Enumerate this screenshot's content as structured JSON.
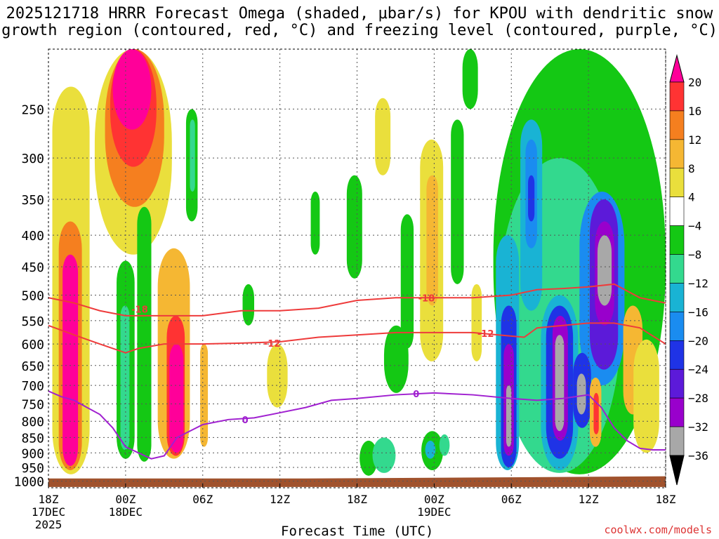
{
  "title_line1": "2025121718 HRRR Forecast Omega (shaded, μbar/s) for KPOU with dendritic snow",
  "title_line2": "growth region (contoured, red, °C) and freezing level (contoured, purple, °C)",
  "x_axis_title": "Forecast Time (UTC)",
  "credit": "coolwx.com/models",
  "chart_data": {
    "type": "heatmap",
    "title": "2025121718 HRRR Forecast Omega (shaded, μbar/s) for KPOU",
    "xlabel": "Forecast Time (UTC)",
    "ylabel": "",
    "x_range_hours": [
      0,
      48
    ],
    "y_range_hpa": [
      1025,
      200
    ],
    "y_ticks": [
      250,
      300,
      350,
      400,
      450,
      500,
      550,
      600,
      650,
      700,
      750,
      800,
      850,
      900,
      950,
      1000
    ],
    "x_ticks": [
      {
        "hour": 0,
        "label": "18Z",
        "sub": "17DEC",
        "sub2": "2025"
      },
      {
        "hour": 6,
        "label": "00Z",
        "sub": "18DEC",
        "sub2": ""
      },
      {
        "hour": 12,
        "label": "06Z",
        "sub": "",
        "sub2": ""
      },
      {
        "hour": 18,
        "label": "12Z",
        "sub": "",
        "sub2": ""
      },
      {
        "hour": 24,
        "label": "18Z",
        "sub": "",
        "sub2": ""
      },
      {
        "hour": 30,
        "label": "00Z",
        "sub": "19DEC",
        "sub2": ""
      },
      {
        "hour": 36,
        "label": "06Z",
        "sub": "",
        "sub2": ""
      },
      {
        "hour": 42,
        "label": "12Z",
        "sub": "",
        "sub2": ""
      },
      {
        "hour": 48,
        "label": "18Z",
        "sub": "",
        "sub2": ""
      }
    ],
    "colorbar": {
      "labels": [
        "20",
        "16",
        "12",
        "8",
        "4",
        "−4",
        "−8",
        "−12",
        "−16",
        "−20",
        "−24",
        "−28",
        "−32",
        "−36"
      ],
      "colors": [
        "#ff0099",
        "#ff3333",
        "#f57f1f",
        "#f5b733",
        "#eadf3c",
        "#ffffff",
        "#14c814",
        "#33d98e",
        "#19b3d4",
        "#1a8cf0",
        "#1f33e6",
        "#5c1ad9",
        "#9900cc",
        "#a8a8a8",
        "#000000"
      ]
    },
    "omega_cells": [
      {
        "t0": 0.3,
        "t1": 3.2,
        "p0": 230,
        "p1": 975,
        "level": 4
      },
      {
        "t0": 0.8,
        "t1": 2.6,
        "p0": 380,
        "p1": 960,
        "level": 2
      },
      {
        "t0": 1.1,
        "t1": 2.3,
        "p0": 430,
        "p1": 945,
        "level": 0
      },
      {
        "t0": 3.6,
        "t1": 9.6,
        "p0": 200,
        "p1": 430,
        "level": 4
      },
      {
        "t0": 4.4,
        "t1": 9.0,
        "p0": 200,
        "p1": 360,
        "level": 2
      },
      {
        "t0": 4.8,
        "t1": 8.4,
        "p0": 200,
        "p1": 310,
        "level": 1
      },
      {
        "t0": 5.0,
        "t1": 8.0,
        "p0": 200,
        "p1": 270,
        "level": 0
      },
      {
        "t0": 8.5,
        "t1": 11.0,
        "p0": 420,
        "p1": 920,
        "level": 3
      },
      {
        "t0": 9.2,
        "t1": 10.6,
        "p0": 540,
        "p1": 910,
        "level": 1
      },
      {
        "t0": 9.4,
        "t1": 10.5,
        "p0": 600,
        "p1": 900,
        "level": 0
      },
      {
        "t0": 5.3,
        "t1": 6.7,
        "p0": 440,
        "p1": 920,
        "level": 6
      },
      {
        "t0": 5.6,
        "t1": 6.3,
        "p0": 520,
        "p1": 890,
        "level": 7
      },
      {
        "t0": 6.9,
        "t1": 8.0,
        "p0": 360,
        "p1": 930,
        "level": 6
      },
      {
        "t0": 11.8,
        "t1": 12.4,
        "p0": 600,
        "p1": 880,
        "level": 3
      },
      {
        "t0": 10.7,
        "t1": 11.6,
        "p0": 250,
        "p1": 380,
        "level": 6
      },
      {
        "t0": 11.0,
        "t1": 11.4,
        "p0": 260,
        "p1": 340,
        "level": 7
      },
      {
        "t0": 15.1,
        "t1": 16.0,
        "p0": 480,
        "p1": 560,
        "level": 6
      },
      {
        "t0": 17.0,
        "t1": 18.6,
        "p0": 600,
        "p1": 760,
        "level": 4
      },
      {
        "t0": 20.4,
        "t1": 21.1,
        "p0": 340,
        "p1": 430,
        "level": 6
      },
      {
        "t0": 23.2,
        "t1": 24.4,
        "p0": 320,
        "p1": 470,
        "level": 6
      },
      {
        "t0": 24.2,
        "t1": 25.6,
        "p0": 860,
        "p1": 980,
        "level": 6
      },
      {
        "t0": 25.2,
        "t1": 27.0,
        "p0": 850,
        "p1": 970,
        "level": 7
      },
      {
        "t0": 25.4,
        "t1": 26.6,
        "p0": 240,
        "p1": 320,
        "level": 4
      },
      {
        "t0": 26.1,
        "t1": 28.0,
        "p0": 560,
        "p1": 720,
        "level": 6
      },
      {
        "t0": 27.4,
        "t1": 28.4,
        "p0": 370,
        "p1": 610,
        "level": 6
      },
      {
        "t0": 29.0,
        "t1": 30.7,
        "p0": 830,
        "p1": 960,
        "level": 6
      },
      {
        "t0": 29.3,
        "t1": 30.1,
        "p0": 860,
        "p1": 920,
        "level": 8
      },
      {
        "t0": 30.4,
        "t1": 31.2,
        "p0": 840,
        "p1": 910,
        "level": 7
      },
      {
        "t0": 28.9,
        "t1": 30.7,
        "p0": 280,
        "p1": 640,
        "level": 4
      },
      {
        "t0": 29.4,
        "t1": 30.3,
        "p0": 320,
        "p1": 520,
        "level": 3
      },
      {
        "t0": 31.3,
        "t1": 32.3,
        "p0": 260,
        "p1": 480,
        "level": 6
      },
      {
        "t0": 32.9,
        "t1": 33.7,
        "p0": 480,
        "p1": 640,
        "level": 4
      },
      {
        "t0": 34.6,
        "t1": 48.0,
        "p0": 200,
        "p1": 975,
        "level": 6
      },
      {
        "t0": 35.0,
        "t1": 44.5,
        "p0": 300,
        "p1": 970,
        "level": 7
      },
      {
        "t0": 34.8,
        "t1": 36.6,
        "p0": 400,
        "p1": 960,
        "level": 8
      },
      {
        "t0": 35.2,
        "t1": 36.4,
        "p0": 520,
        "p1": 950,
        "level": 10
      },
      {
        "t0": 35.4,
        "t1": 36.2,
        "p0": 600,
        "p1": 910,
        "level": 12
      },
      {
        "t0": 35.6,
        "t1": 36.0,
        "p0": 700,
        "p1": 880,
        "level": 13
      },
      {
        "t0": 36.7,
        "t1": 38.4,
        "p0": 260,
        "p1": 530,
        "level": 8
      },
      {
        "t0": 37.1,
        "t1": 38.0,
        "p0": 280,
        "p1": 420,
        "level": 9
      },
      {
        "t0": 37.3,
        "t1": 37.8,
        "p0": 320,
        "p1": 380,
        "level": 10
      },
      {
        "t0": 38.3,
        "t1": 41.2,
        "p0": 500,
        "p1": 960,
        "level": 8
      },
      {
        "t0": 38.7,
        "t1": 40.8,
        "p0": 520,
        "p1": 920,
        "level": 10
      },
      {
        "t0": 39.2,
        "t1": 40.4,
        "p0": 540,
        "p1": 860,
        "level": 12
      },
      {
        "t0": 39.4,
        "t1": 40.1,
        "p0": 580,
        "p1": 830,
        "level": 13
      },
      {
        "t0": 41.3,
        "t1": 44.8,
        "p0": 340,
        "p1": 700,
        "level": 9
      },
      {
        "t0": 42.1,
        "t1": 44.3,
        "p0": 350,
        "p1": 660,
        "level": 11
      },
      {
        "t0": 42.5,
        "t1": 44.0,
        "p0": 380,
        "p1": 560,
        "level": 12
      },
      {
        "t0": 42.7,
        "t1": 43.8,
        "p0": 400,
        "p1": 520,
        "level": 13
      },
      {
        "t0": 40.8,
        "t1": 42.2,
        "p0": 620,
        "p1": 820,
        "level": 10
      },
      {
        "t0": 41.1,
        "t1": 41.8,
        "p0": 670,
        "p1": 780,
        "level": 13
      },
      {
        "t0": 42.1,
        "t1": 43.0,
        "p0": 680,
        "p1": 880,
        "level": 3
      },
      {
        "t0": 42.4,
        "t1": 42.8,
        "p0": 720,
        "p1": 840,
        "level": 1
      },
      {
        "t0": 44.7,
        "t1": 46.2,
        "p0": 520,
        "p1": 780,
        "level": 3
      },
      {
        "t0": 45.5,
        "t1": 47.5,
        "p0": 590,
        "p1": 900,
        "level": 4
      },
      {
        "t0": 32.2,
        "t1": 33.4,
        "p0": 200,
        "p1": 250,
        "level": 6
      }
    ],
    "series": [
      {
        "name": "-18",
        "color": "#ee3b3b",
        "label": "-18",
        "x": [
          0,
          2,
          4,
          6,
          9,
          12,
          15,
          18,
          21,
          24,
          27,
          30,
          33,
          36,
          38,
          40,
          42,
          44,
          46,
          48
        ],
        "y": [
          505,
          515,
          530,
          540,
          540,
          540,
          530,
          530,
          525,
          510,
          505,
          505,
          505,
          500,
          490,
          488,
          485,
          480,
          505,
          515
        ]
      },
      {
        "name": "-12",
        "color": "#ee3b3b",
        "label": "-12",
        "x": [
          0,
          2,
          4,
          6,
          7,
          9,
          12,
          15,
          18,
          21,
          24,
          27,
          30,
          33,
          35,
          37,
          38,
          40,
          42,
          44,
          46,
          48
        ],
        "y": [
          560,
          580,
          600,
          620,
          610,
          600,
          600,
          598,
          595,
          585,
          580,
          575,
          575,
          575,
          580,
          585,
          565,
          560,
          555,
          555,
          565,
          600
        ]
      },
      {
        "name": "0",
        "color": "#a020d0",
        "label": "0",
        "x": [
          0,
          1,
          2,
          3,
          4,
          5,
          6,
          7,
          8,
          9,
          10,
          11,
          12,
          14,
          16,
          18,
          20,
          22,
          24,
          27,
          30,
          33,
          36,
          38,
          40,
          42,
          43,
          44,
          45,
          46,
          47,
          48
        ],
        "y": [
          715,
          730,
          740,
          760,
          780,
          820,
          880,
          900,
          920,
          910,
          850,
          830,
          810,
          795,
          790,
          775,
          760,
          740,
          735,
          725,
          720,
          725,
          735,
          740,
          735,
          725,
          760,
          820,
          860,
          885,
          890,
          890
        ]
      }
    ],
    "contour_labels": [
      {
        "text": "-18",
        "x": 7.1,
        "y": 527
      },
      {
        "text": "-12",
        "x": 17.4,
        "y": 598
      },
      {
        "text": "-18",
        "x": 29.4,
        "y": 505
      },
      {
        "text": "-12",
        "x": 34.0,
        "y": 577
      },
      {
        "text": "0",
        "x": 15.3,
        "y": 795
      },
      {
        "text": "0",
        "x": 28.6,
        "y": 722
      }
    ]
  }
}
